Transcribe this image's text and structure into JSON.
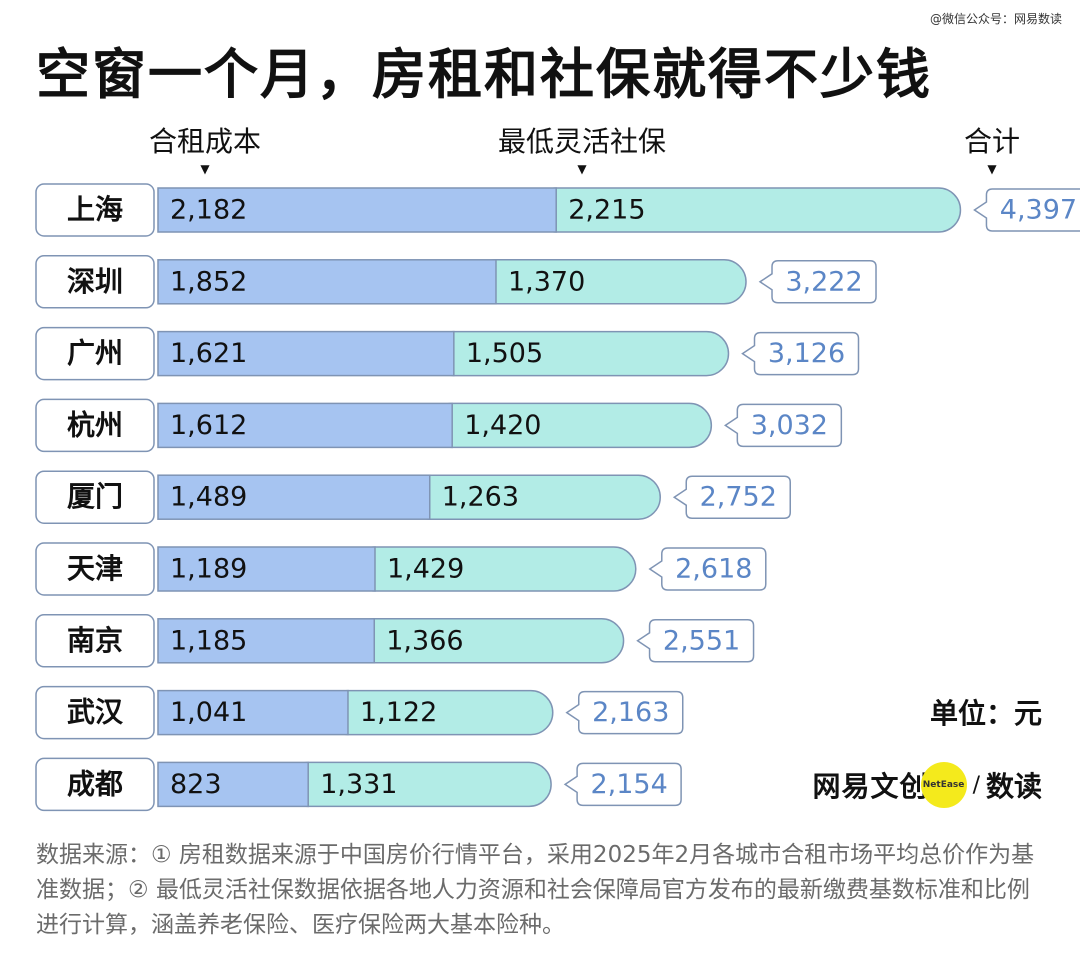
{
  "watermark": "@微信公众号：网易数读",
  "title": "空窗一个月，房租和社保就得不少钱",
  "headers": {
    "rent": "合租成本",
    "social": "最低灵活社保",
    "total": "合计"
  },
  "unit": "单位：元",
  "brand": {
    "name": "网易文创",
    "badge": "NetEase",
    "slash": "/",
    "sub": "数读"
  },
  "source": "数据来源：① 房租数据来源于中国房价行情平台，采用2025年2月各城市合租市场平均总价作为基准数据；② 最低灵活社保数据依据各地人力资源和社会保障局官方发布的最新缴费基数标准和比例进行计算，涵盖养老保险、医疗保险两大基本险种。",
  "colors": {
    "rent": "#a6c4f1",
    "social": "#b2ece6",
    "outline": "#7f94b4",
    "total_text": "#5b86c6"
  },
  "chart_data": {
    "type": "bar",
    "stacked": true,
    "orientation": "horizontal",
    "categories": [
      "上海",
      "深圳",
      "广州",
      "杭州",
      "厦门",
      "天津",
      "南京",
      "武汉",
      "成都"
    ],
    "series": [
      {
        "name": "合租成本",
        "values": [
          2182,
          1852,
          1621,
          1612,
          1489,
          1189,
          1185,
          1041,
          823
        ]
      },
      {
        "name": "最低灵活社保",
        "values": [
          2215,
          1370,
          1505,
          1420,
          1263,
          1429,
          1366,
          1122,
          1331
        ]
      }
    ],
    "totals_label": "合计",
    "totals": [
      4397,
      3222,
      3126,
      3032,
      2752,
      2618,
      2551,
      2163,
      2154
    ],
    "value_labels": {
      "rent": [
        "2,182",
        "1,852",
        "1,621",
        "1,612",
        "1,489",
        "1,189",
        "1,185",
        "1,041",
        "823"
      ],
      "social": [
        "2,215",
        "1,370",
        "1,505",
        "1,420",
        "1,263",
        "1,429",
        "1,366",
        "1,122",
        "1,331"
      ],
      "total": [
        "4,397",
        "3,222",
        "3,126",
        "3,032",
        "2,752",
        "2,618",
        "2,551",
        "2,163",
        "2,154"
      ]
    },
    "unit": "元",
    "grid": false
  }
}
